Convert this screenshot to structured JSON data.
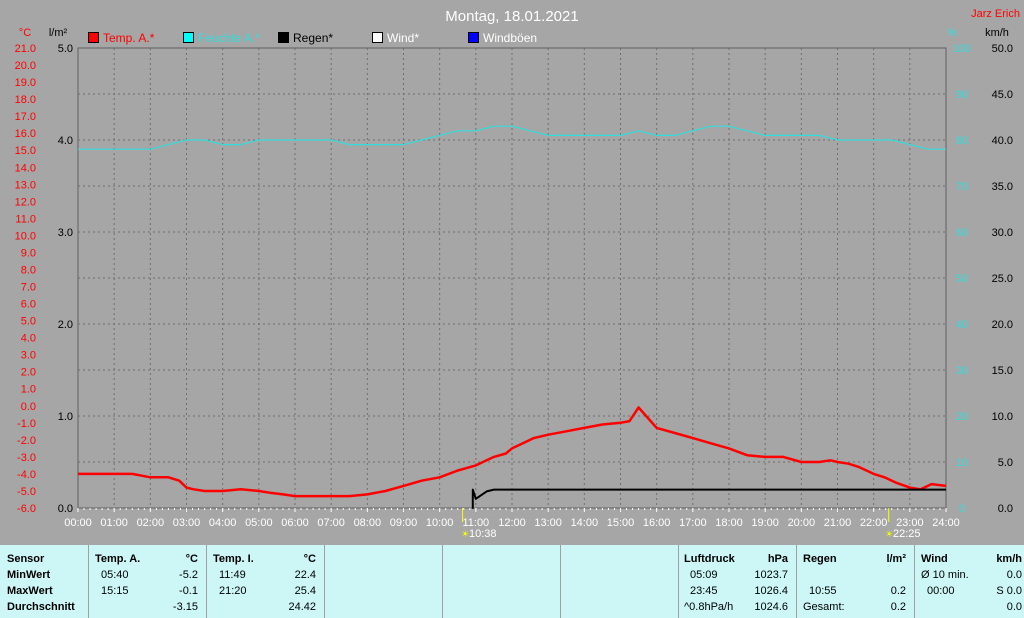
{
  "header": {
    "title": "Montag, 18.01.2021",
    "author": "Jarz Erich"
  },
  "axis_units": {
    "left_celsius": "°C",
    "left_rain": "l/m²",
    "right_percent": "%",
    "right_kmh": "km/h"
  },
  "legend": [
    {
      "label": "Temp. A.*",
      "color": "#ff0000"
    },
    {
      "label": "Feuchte A.*",
      "color": "#00ffff"
    },
    {
      "label": "Regen*",
      "color": "#000000"
    },
    {
      "label": "Wind*",
      "color": "#ffffff"
    },
    {
      "label": "Windböen",
      "color": "#0000ff"
    }
  ],
  "colors": {
    "background": "#a6a6a6",
    "temp": "#ff0000",
    "humidity": "#33dddd",
    "rain": "#000000",
    "panel": "#ccf7f6"
  },
  "markers": {
    "sunrise": "10:38",
    "sunset": "22:25"
  },
  "chart_data": {
    "type": "line",
    "title": "Montag, 18.01.2021",
    "x_ticks": [
      "00:00",
      "01:00",
      "02:00",
      "03:00",
      "04:00",
      "05:00",
      "06:00",
      "07:00",
      "08:00",
      "09:00",
      "10:00",
      "11:00",
      "12:00",
      "13:00",
      "14:00",
      "15:00",
      "16:00",
      "17:00",
      "18:00",
      "19:00",
      "20:00",
      "21:00",
      "22:00",
      "23:00",
      "24:00"
    ],
    "xlim_hours": [
      0,
      24
    ],
    "y_temp_ticks": [
      "21.0",
      "20.0",
      "19.0",
      "18.0",
      "17.0",
      "16.0",
      "15.0",
      "14.0",
      "13.0",
      "12.0",
      "11.0",
      "10.0",
      "9.0",
      "8.0",
      "7.0",
      "6.0",
      "5.0",
      "4.0",
      "3.0",
      "2.0",
      "1.0",
      "0.0",
      "-1.0",
      "-2.0",
      "-3.0",
      "-4.0",
      "-5.0",
      "-6.0"
    ],
    "ylim_temp": [
      -6,
      21
    ],
    "y_rain_ticks": [
      "5.0",
      "4.0",
      "3.0",
      "2.0",
      "1.0",
      "0.0"
    ],
    "ylim_rain": [
      0,
      5
    ],
    "y_humidity_ticks": [
      "100",
      "90",
      "80",
      "70",
      "60",
      "50",
      "40",
      "30",
      "20",
      "10",
      "0"
    ],
    "ylim_humidity": [
      0,
      100
    ],
    "y_wind_ticks": [
      "50.0",
      "45.0",
      "40.0",
      "35.0",
      "30.0",
      "25.0",
      "20.0",
      "15.0",
      "10.0",
      "5.0",
      "0.0"
    ],
    "ylim_wind": [
      0,
      50
    ],
    "grid": true,
    "series": [
      {
        "name": "Temp. A.*",
        "axis": "temp",
        "x": [
          0,
          0.5,
          1,
          1.5,
          2,
          2.5,
          2.8,
          3,
          3.2,
          3.5,
          4,
          4.5,
          5,
          5.3,
          5.67,
          6,
          6.5,
          7,
          7.5,
          8,
          8.5,
          9,
          9.5,
          10,
          10.5,
          11,
          11.5,
          11.83,
          12,
          12.3,
          12.6,
          13,
          13.5,
          14,
          14.5,
          15,
          15.25,
          15.5,
          16,
          16.5,
          17,
          17.5,
          18,
          18.5,
          19,
          19.5,
          20,
          20.5,
          20.8,
          21,
          21.3,
          21.6,
          22,
          22.3,
          22.6,
          23,
          23.3,
          23.6,
          24
        ],
        "y": [
          -4.0,
          -4.0,
          -4.0,
          -4.0,
          -4.2,
          -4.2,
          -4.4,
          -4.8,
          -4.9,
          -5.0,
          -5.0,
          -4.9,
          -5.0,
          -5.1,
          -5.2,
          -5.3,
          -5.3,
          -5.3,
          -5.3,
          -5.2,
          -5.0,
          -4.7,
          -4.4,
          -4.2,
          -3.8,
          -3.5,
          -3.0,
          -2.8,
          -2.5,
          -2.2,
          -1.9,
          -1.7,
          -1.5,
          -1.3,
          -1.1,
          -1.0,
          -0.9,
          -0.1,
          -1.3,
          -1.6,
          -1.9,
          -2.2,
          -2.5,
          -2.9,
          -3.0,
          -3.0,
          -3.3,
          -3.3,
          -3.2,
          -3.3,
          -3.4,
          -3.6,
          -4.0,
          -4.2,
          -4.5,
          -4.8,
          -4.9,
          -4.6,
          -4.7
        ]
      },
      {
        "name": "Feuchte A.*",
        "axis": "humidity",
        "x": [
          0,
          1,
          2,
          2.5,
          3,
          3.5,
          4,
          4.5,
          5,
          5.5,
          6,
          7,
          7.5,
          8,
          9,
          9.5,
          10,
          10.5,
          11,
          11.5,
          12,
          12.5,
          13,
          14,
          15,
          15.5,
          16,
          16.5,
          17,
          17.5,
          18,
          18.5,
          19,
          20,
          20.5,
          21,
          21.5,
          22,
          22.5,
          23,
          23.5,
          24
        ],
        "y": [
          78,
          78,
          78,
          79,
          80,
          80,
          79,
          79,
          80,
          80,
          80,
          80,
          79,
          79,
          79,
          80,
          81,
          82,
          82,
          83,
          83,
          82,
          81,
          81,
          81,
          82,
          81,
          81,
          82,
          83,
          83,
          82,
          81,
          81,
          81,
          80,
          80,
          80,
          80,
          79,
          78,
          78
        ]
      },
      {
        "name": "Regen*",
        "axis": "rain",
        "x": [
          10.9,
          10.917,
          11,
          11.3,
          11.5,
          12,
          13,
          14,
          15,
          16,
          17,
          18,
          19,
          20,
          21,
          22,
          23,
          24
        ],
        "y": [
          0,
          0.2,
          0.1,
          0.18,
          0.2,
          0.2,
          0.2,
          0.2,
          0.2,
          0.2,
          0.2,
          0.2,
          0.2,
          0.2,
          0.2,
          0.2,
          0.2,
          0.2
        ]
      }
    ]
  },
  "panel": {
    "headers": {
      "sensor": "Sensor",
      "temp_a": "Temp. A.",
      "temp_a_unit": "°C",
      "temp_i": "Temp. I.",
      "temp_i_unit": "°C",
      "pressure": "Luftdruck",
      "pressure_unit": "hPa",
      "rain": "Regen",
      "rain_unit": "l/m²",
      "wind": "Wind",
      "wind_unit": "km/h"
    },
    "rows": {
      "min": "MinWert",
      "max": "MaxWert",
      "avg": "Durchschnitt"
    },
    "temp_a": {
      "min_time": "05:40",
      "min_val": "-5.2",
      "max_time": "15:15",
      "max_val": "-0.1",
      "avg_val": "-3.15"
    },
    "temp_i": {
      "min_time": "11:49",
      "min_val": "22.4",
      "max_time": "21:20",
      "max_val": "25.4",
      "avg_val": "24.42"
    },
    "pressure": {
      "min_time": "05:09",
      "min_val": "1023.7",
      "max_time": "23:45",
      "max_val": "1026.4",
      "trend_label": "^0.8hPa/h",
      "avg_val": "1024.6"
    },
    "rain": {
      "time": "10:55",
      "val": "0.2",
      "total_label": "Gesamt:",
      "total_val": "0.2"
    },
    "wind": {
      "avg10_label": "Ø 10 min.",
      "avg10_val": "0.0",
      "time": "00:00",
      "dir_val": "S 0.0",
      "val3": "0.0"
    }
  }
}
